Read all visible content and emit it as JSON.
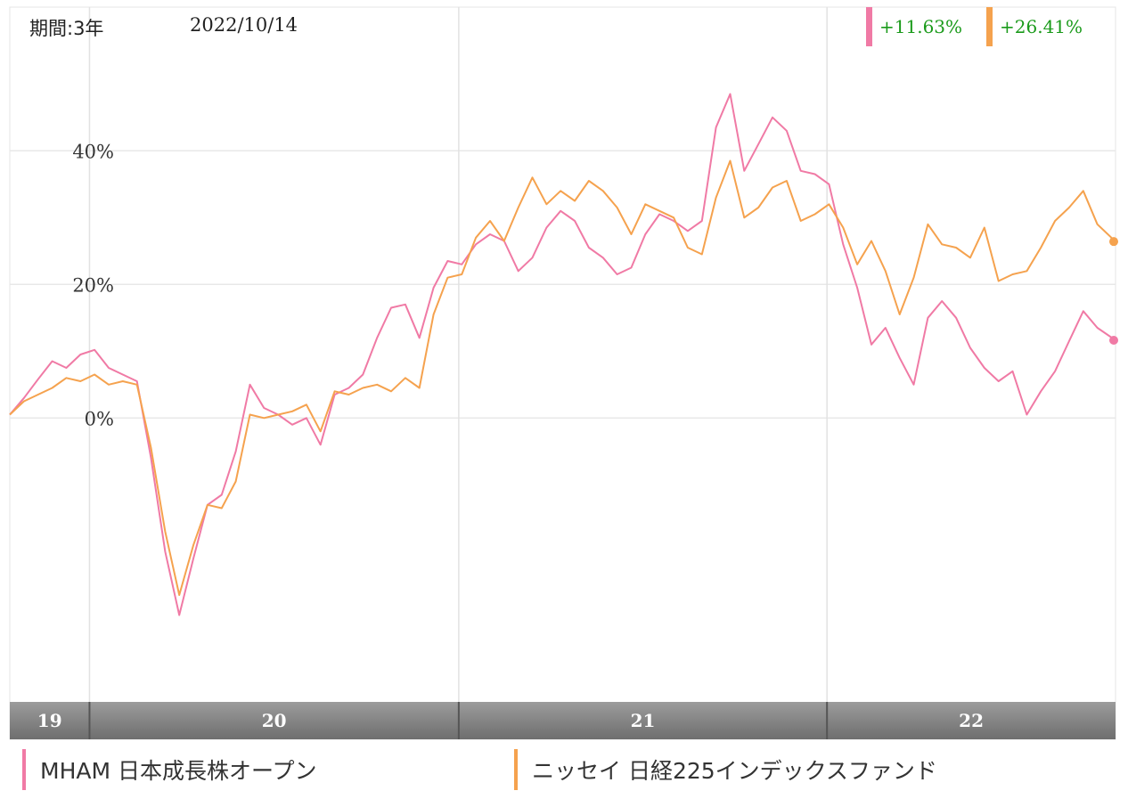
{
  "header": {
    "period_label": "期間:3年",
    "date": "2022/10/14"
  },
  "returns": [
    {
      "series": "MHAM 日本成長株オープン",
      "value": "+11.63%",
      "color": "#f07aa5"
    },
    {
      "series": "ニッセイ 日経225インデックスファンド",
      "value": "+26.41%",
      "color": "#f5a24e"
    }
  ],
  "legend": [
    {
      "label": "MHAM 日本成長株オープン",
      "color": "#f07aa5"
    },
    {
      "label": "ニッセイ 日経225インデックスファンド",
      "color": "#f5a24e"
    }
  ],
  "chart_data": {
    "type": "line",
    "x_range": [
      "2019-10-14",
      "2022-10-14"
    ],
    "ylim": [
      -42.5,
      61.5
    ],
    "y_ticks": [
      {
        "value": 0,
        "label": "0%"
      },
      {
        "value": 20,
        "label": "20%"
      },
      {
        "value": 40,
        "label": "40%"
      }
    ],
    "x_bands": [
      {
        "label": "19",
        "from": "2019-10-14",
        "to": "2020-01-01"
      },
      {
        "label": "20",
        "from": "2020-01-01",
        "to": "2021-01-01"
      },
      {
        "label": "21",
        "from": "2021-01-01",
        "to": "2022-01-01"
      },
      {
        "label": "22",
        "from": "2022-01-01",
        "to": "2022-10-14"
      }
    ],
    "grid": true,
    "series": [
      {
        "name": "MHAM 日本成長株オープン",
        "color": "#f07aa5",
        "points": [
          [
            "2019-10-14",
            0.5
          ],
          [
            "2019-10-28",
            3.0
          ],
          [
            "2019-11-11",
            5.8
          ],
          [
            "2019-11-25",
            8.5
          ],
          [
            "2019-12-09",
            7.5
          ],
          [
            "2019-12-23",
            9.5
          ],
          [
            "2020-01-06",
            10.2
          ],
          [
            "2020-01-20",
            7.5
          ],
          [
            "2020-02-03",
            6.5
          ],
          [
            "2020-02-17",
            5.5
          ],
          [
            "2020-03-02",
            -6.0
          ],
          [
            "2020-03-16",
            -20.0
          ],
          [
            "2020-03-30",
            -29.5
          ],
          [
            "2020-04-13",
            -21.0
          ],
          [
            "2020-04-27",
            -13.0
          ],
          [
            "2020-05-11",
            -11.5
          ],
          [
            "2020-05-25",
            -5.0
          ],
          [
            "2020-06-08",
            5.0
          ],
          [
            "2020-06-22",
            1.5
          ],
          [
            "2020-07-06",
            0.5
          ],
          [
            "2020-07-20",
            -1.0
          ],
          [
            "2020-08-03",
            0.0
          ],
          [
            "2020-08-17",
            -4.0
          ],
          [
            "2020-08-31",
            3.5
          ],
          [
            "2020-09-14",
            4.5
          ],
          [
            "2020-09-28",
            6.5
          ],
          [
            "2020-10-12",
            12.0
          ],
          [
            "2020-10-26",
            16.5
          ],
          [
            "2020-11-09",
            17.0
          ],
          [
            "2020-11-23",
            12.0
          ],
          [
            "2020-12-07",
            19.5
          ],
          [
            "2020-12-21",
            23.5
          ],
          [
            "2021-01-04",
            23.0
          ],
          [
            "2021-01-18",
            26.0
          ],
          [
            "2021-02-01",
            27.5
          ],
          [
            "2021-02-15",
            26.5
          ],
          [
            "2021-03-01",
            22.0
          ],
          [
            "2021-03-15",
            24.0
          ],
          [
            "2021-03-29",
            28.5
          ],
          [
            "2021-04-12",
            31.0
          ],
          [
            "2021-04-26",
            29.5
          ],
          [
            "2021-05-10",
            25.5
          ],
          [
            "2021-05-24",
            24.0
          ],
          [
            "2021-06-07",
            21.5
          ],
          [
            "2021-06-21",
            22.5
          ],
          [
            "2021-07-05",
            27.5
          ],
          [
            "2021-07-19",
            30.5
          ],
          [
            "2021-08-02",
            29.5
          ],
          [
            "2021-08-16",
            28.0
          ],
          [
            "2021-08-30",
            29.5
          ],
          [
            "2021-09-13",
            43.5
          ],
          [
            "2021-09-27",
            48.5
          ],
          [
            "2021-10-11",
            37.0
          ],
          [
            "2021-10-25",
            41.0
          ],
          [
            "2021-11-08",
            45.0
          ],
          [
            "2021-11-22",
            43.0
          ],
          [
            "2021-12-06",
            37.0
          ],
          [
            "2021-12-20",
            36.5
          ],
          [
            "2022-01-03",
            35.0
          ],
          [
            "2022-01-17",
            26.0
          ],
          [
            "2022-01-31",
            19.5
          ],
          [
            "2022-02-14",
            11.0
          ],
          [
            "2022-02-28",
            13.5
          ],
          [
            "2022-03-14",
            9.0
          ],
          [
            "2022-03-28",
            5.0
          ],
          [
            "2022-04-11",
            15.0
          ],
          [
            "2022-04-25",
            17.5
          ],
          [
            "2022-05-09",
            15.0
          ],
          [
            "2022-05-23",
            10.5
          ],
          [
            "2022-06-06",
            7.5
          ],
          [
            "2022-06-20",
            5.5
          ],
          [
            "2022-07-04",
            7.0
          ],
          [
            "2022-07-18",
            0.5
          ],
          [
            "2022-08-01",
            4.0
          ],
          [
            "2022-08-15",
            7.0
          ],
          [
            "2022-08-29",
            11.5
          ],
          [
            "2022-09-12",
            16.0
          ],
          [
            "2022-09-26",
            13.5
          ],
          [
            "2022-10-14",
            11.63
          ]
        ]
      },
      {
        "name": "ニッセイ 日経225インデックスファンド",
        "color": "#f5a24e",
        "points": [
          [
            "2019-10-14",
            0.5
          ],
          [
            "2019-10-28",
            2.5
          ],
          [
            "2019-11-11",
            3.5
          ],
          [
            "2019-11-25",
            4.5
          ],
          [
            "2019-12-09",
            6.0
          ],
          [
            "2019-12-23",
            5.5
          ],
          [
            "2020-01-06",
            6.5
          ],
          [
            "2020-01-20",
            5.0
          ],
          [
            "2020-02-03",
            5.5
          ],
          [
            "2020-02-17",
            5.0
          ],
          [
            "2020-03-02",
            -4.5
          ],
          [
            "2020-03-16",
            -17.0
          ],
          [
            "2020-03-30",
            -26.5
          ],
          [
            "2020-04-13",
            -19.0
          ],
          [
            "2020-04-27",
            -13.0
          ],
          [
            "2020-05-11",
            -13.5
          ],
          [
            "2020-05-25",
            -9.5
          ],
          [
            "2020-06-08",
            0.5
          ],
          [
            "2020-06-22",
            0.0
          ],
          [
            "2020-07-06",
            0.5
          ],
          [
            "2020-07-20",
            1.0
          ],
          [
            "2020-08-03",
            2.0
          ],
          [
            "2020-08-17",
            -2.0
          ],
          [
            "2020-08-31",
            4.0
          ],
          [
            "2020-09-14",
            3.5
          ],
          [
            "2020-09-28",
            4.5
          ],
          [
            "2020-10-12",
            5.0
          ],
          [
            "2020-10-26",
            4.0
          ],
          [
            "2020-11-09",
            6.0
          ],
          [
            "2020-11-23",
            4.5
          ],
          [
            "2020-12-07",
            15.5
          ],
          [
            "2020-12-21",
            21.0
          ],
          [
            "2021-01-04",
            21.5
          ],
          [
            "2021-01-18",
            27.0
          ],
          [
            "2021-02-01",
            29.5
          ],
          [
            "2021-02-15",
            26.5
          ],
          [
            "2021-03-01",
            31.5
          ],
          [
            "2021-03-15",
            36.0
          ],
          [
            "2021-03-29",
            32.0
          ],
          [
            "2021-04-12",
            34.0
          ],
          [
            "2021-04-26",
            32.5
          ],
          [
            "2021-05-10",
            35.5
          ],
          [
            "2021-05-24",
            34.0
          ],
          [
            "2021-06-07",
            31.5
          ],
          [
            "2021-06-21",
            27.5
          ],
          [
            "2021-07-05",
            32.0
          ],
          [
            "2021-07-19",
            31.0
          ],
          [
            "2021-08-02",
            30.0
          ],
          [
            "2021-08-16",
            25.5
          ],
          [
            "2021-08-30",
            24.5
          ],
          [
            "2021-09-13",
            33.0
          ],
          [
            "2021-09-27",
            38.5
          ],
          [
            "2021-10-11",
            30.0
          ],
          [
            "2021-10-25",
            31.5
          ],
          [
            "2021-11-08",
            34.5
          ],
          [
            "2021-11-22",
            35.5
          ],
          [
            "2021-12-06",
            29.5
          ],
          [
            "2021-12-20",
            30.5
          ],
          [
            "2022-01-03",
            32.0
          ],
          [
            "2022-01-17",
            28.5
          ],
          [
            "2022-01-31",
            23.0
          ],
          [
            "2022-02-14",
            26.5
          ],
          [
            "2022-02-28",
            22.0
          ],
          [
            "2022-03-14",
            15.5
          ],
          [
            "2022-03-28",
            21.0
          ],
          [
            "2022-04-11",
            29.0
          ],
          [
            "2022-04-25",
            26.0
          ],
          [
            "2022-05-09",
            25.5
          ],
          [
            "2022-05-23",
            24.0
          ],
          [
            "2022-06-06",
            28.5
          ],
          [
            "2022-06-20",
            20.5
          ],
          [
            "2022-07-04",
            21.5
          ],
          [
            "2022-07-18",
            22.0
          ],
          [
            "2022-08-01",
            25.5
          ],
          [
            "2022-08-15",
            29.5
          ],
          [
            "2022-08-29",
            31.5
          ],
          [
            "2022-09-12",
            34.0
          ],
          [
            "2022-09-26",
            29.0
          ],
          [
            "2022-10-14",
            26.41
          ]
        ]
      }
    ]
  }
}
